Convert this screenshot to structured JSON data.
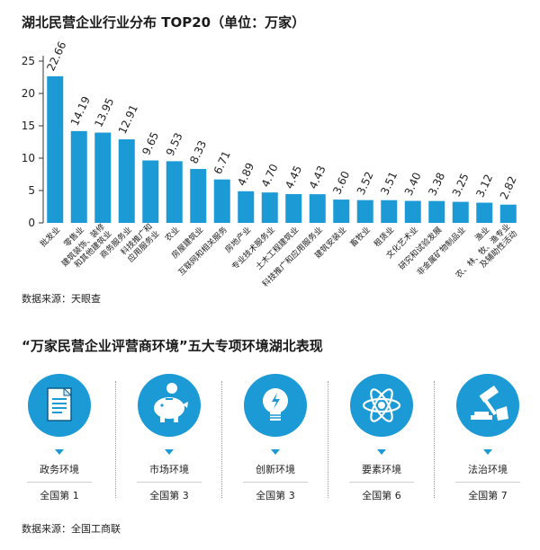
{
  "page": {
    "title1": "湖北民营企业行业分布 TOP20（单位：万家）",
    "source1": "数据来源：天眼查",
    "title2": "“万家民营企业评营商环境”五大专项环境湖北表现",
    "source2": "数据来源：全国工商联"
  },
  "colors": {
    "bar": "#1b9ad6",
    "axis": "#333333",
    "icon_bg": "#1b9ad6"
  },
  "chart_data": {
    "type": "bar",
    "title": "湖北民营企业行业分布 TOP20（单位：万家）",
    "categories": [
      "批发业",
      "零售业",
      "建筑装饰、装修和其他建筑业",
      "商务服务业",
      "科技推广和应用服务业",
      "农业",
      "房屋建筑业",
      "互联网和相关服务",
      "房地产业",
      "专业技术服务业",
      "土木工程建筑业",
      "科技推广和应用服务业",
      "建筑安装业",
      "畜牧业",
      "租赁业",
      "文化艺术业",
      "研究和试验发展",
      "非金属矿物制品业",
      "渔业",
      "农、林、牧、渔专业及辅助性活动"
    ],
    "tick_labels": [
      "批发业",
      "零售业",
      "建筑装饰、装修|和其他建筑业",
      "商务服务业",
      "科技推广和|应用服务业",
      "农业",
      "房屋建筑业",
      "互联网和相关服务",
      "房地产业",
      "专业技术服务业",
      "土木工程建筑业",
      "科技推广和应用服务业",
      "建筑安装业",
      "畜牧业",
      "租赁业",
      "文化艺术业",
      "研究和试验发展",
      "非金属矿物制品业",
      "渔业",
      "农、林、牧、渔专业|及辅助性活动"
    ],
    "values": [
      22.66,
      14.19,
      13.95,
      12.91,
      9.65,
      9.53,
      8.33,
      6.71,
      4.89,
      4.7,
      4.45,
      4.43,
      3.6,
      3.52,
      3.51,
      3.4,
      3.38,
      3.25,
      3.12,
      2.82
    ],
    "value_labels": [
      "22.66",
      "14.19",
      "13.95",
      "12.91",
      "9.65",
      "9.53",
      "8.33",
      "6.71",
      "4.89",
      "4.70",
      "4.45",
      "4.43",
      "3.60",
      "3.52",
      "3.51",
      "3.40",
      "3.38",
      "3.25",
      "3.12",
      "2.82"
    ],
    "yticks": [
      0,
      5,
      10,
      15,
      20,
      25
    ],
    "ylim": [
      0,
      25
    ],
    "xlabel": "",
    "ylabel": "",
    "grid": false,
    "legend": "none"
  },
  "cards": [
    {
      "icon": "document-icon",
      "name": "政务环境",
      "rank": "全国第 1"
    },
    {
      "icon": "piggy-bank-icon",
      "name": "市场环境",
      "rank": "全国第 3"
    },
    {
      "icon": "lightbulb-icon",
      "name": "创新环境",
      "rank": "全国第 3"
    },
    {
      "icon": "atom-icon",
      "name": "要素环境",
      "rank": "全国第 6"
    },
    {
      "icon": "gavel-icon",
      "name": "法治环境",
      "rank": "全国第 7"
    }
  ]
}
